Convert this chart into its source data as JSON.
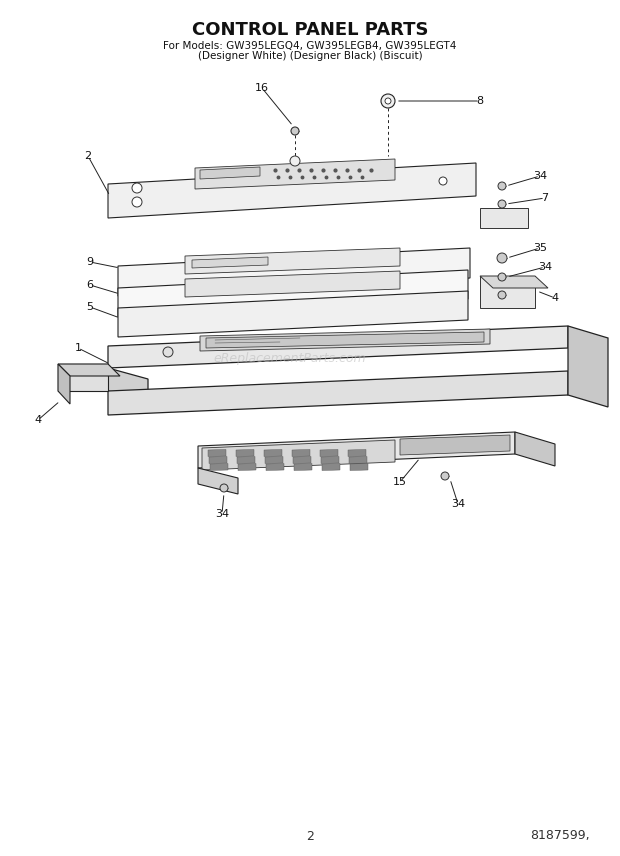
{
  "title": "CONTROL PANEL PARTS",
  "subtitle_line1": "For Models: GW395LEGQ4, GW395LEGB4, GW395LEGT4",
  "subtitle_line2": "(Designer White) (Designer Black) (Biscuit)",
  "page_number": "2",
  "part_number": "8187599",
  "watermark": "eReplacementParts.com",
  "bg": "#ffffff",
  "lc": "#222222",
  "lw": 0.8
}
